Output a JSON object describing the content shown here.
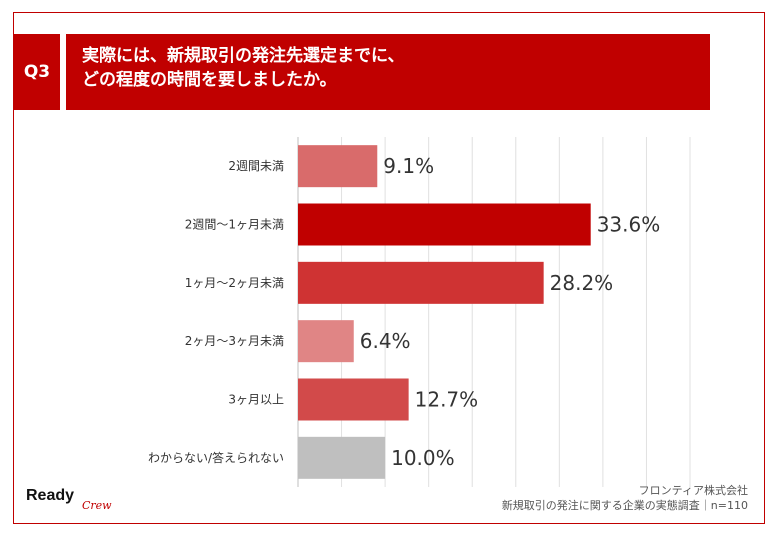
{
  "header": {
    "question_number": "Q3",
    "title_line1": "実際には、新規取引の発注先選定までに、",
    "title_line2": "どの程度の時間を要しましたか。"
  },
  "chart_data": {
    "type": "bar",
    "orientation": "horizontal",
    "categories": [
      "2週間未満",
      "2週間〜1ヶ月未満",
      "1ヶ月〜2ヶ月未満",
      "2ヶ月〜3ヶ月未満",
      "3ヶ月以上",
      "わからない/答えられない"
    ],
    "values": [
      9.1,
      33.6,
      28.2,
      6.4,
      12.7,
      10.0
    ],
    "value_labels": [
      "9.1%",
      "33.6%",
      "28.2%",
      "6.4%",
      "12.7%",
      "10.0%"
    ],
    "colors": [
      "#d96b6b",
      "#c00000",
      "#cf3333",
      "#e08585",
      "#d24a4a",
      "#bfbfbf"
    ],
    "xlim": [
      0,
      45
    ],
    "grid": true,
    "unit": "%"
  },
  "footer": {
    "company": "フロンティア株式会社",
    "survey": "新規取引の発注に関する企業の実態調査｜n=110"
  },
  "logo": {
    "ready": "Ready",
    "crew": "Crew"
  },
  "colors": {
    "accent": "#c00000",
    "gridline": "#e0e0e0"
  }
}
